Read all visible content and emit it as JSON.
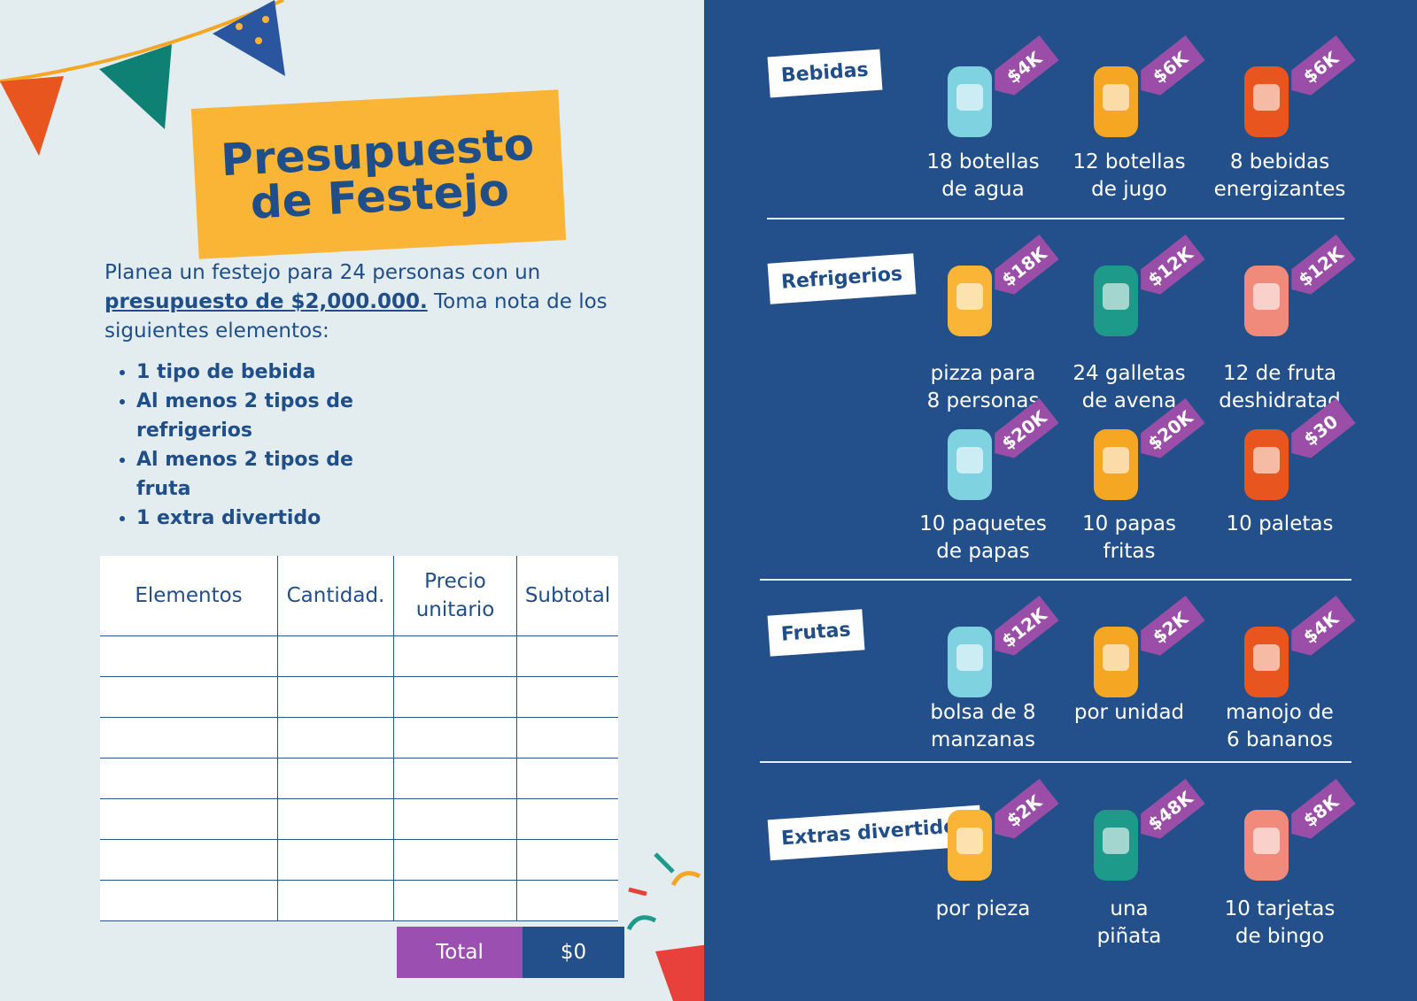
{
  "title": [
    "Presupuesto",
    "de Festejo"
  ],
  "intro": {
    "before": "Planea un festejo para 24 personas con un",
    "highlight": "presupuesto de $2,000.000.",
    "after": "Toma nota de los siguientes elementos:"
  },
  "requirements": [
    "1 tipo de bebida",
    "Al menos 2 tipos de refrigerios",
    "Al menos 2 tipos de fruta",
    "1 extra divertido"
  ],
  "table": {
    "headers": [
      "Elementos",
      "Cantidad.",
      "Precio unitario",
      "Subtotal"
    ],
    "total_label": "Total",
    "total_value": "$0"
  },
  "sections": [
    {
      "name": "Bebidas",
      "items": [
        {
          "price": "$4K",
          "label": [
            "18 botellas",
            "de agua"
          ]
        },
        {
          "price": "$6K",
          "label": [
            "12 botellas",
            "de jugo"
          ]
        },
        {
          "price": "$6K",
          "label": [
            "8 bebidas",
            "energizantes"
          ]
        }
      ]
    },
    {
      "name": "Refrigerios",
      "items": [
        {
          "price": "$18K",
          "label": [
            "pizza para",
            "8 personas"
          ]
        },
        {
          "price": "$12K",
          "label": [
            "24 galletas",
            "de avena"
          ]
        },
        {
          "price": "$12K",
          "label": [
            "12 de fruta",
            "deshidratad"
          ]
        },
        {
          "price": "$20K",
          "label": [
            "10 paquetes",
            "de papas"
          ]
        },
        {
          "price": "$20K",
          "label": [
            "10 papas",
            "fritas"
          ]
        },
        {
          "price": "$30",
          "label": [
            "10 paletas"
          ]
        }
      ]
    },
    {
      "name": "Frutas",
      "items": [
        {
          "price": "$12K",
          "label": [
            "bolsa de 8",
            "manzanas"
          ]
        },
        {
          "price": "$2K",
          "label": [
            "por unidad"
          ]
        },
        {
          "price": "$4K",
          "label": [
            "manojo de",
            "6 bananos"
          ]
        }
      ]
    },
    {
      "name": "Extras divertidos",
      "items": [
        {
          "price": "$2K",
          "label": [
            "por pieza"
          ]
        },
        {
          "price": "$48K",
          "label": [
            "una",
            "piñata"
          ]
        },
        {
          "price": "$8K",
          "label": [
            "10 tarjetas",
            "de bingo"
          ]
        }
      ]
    }
  ]
}
